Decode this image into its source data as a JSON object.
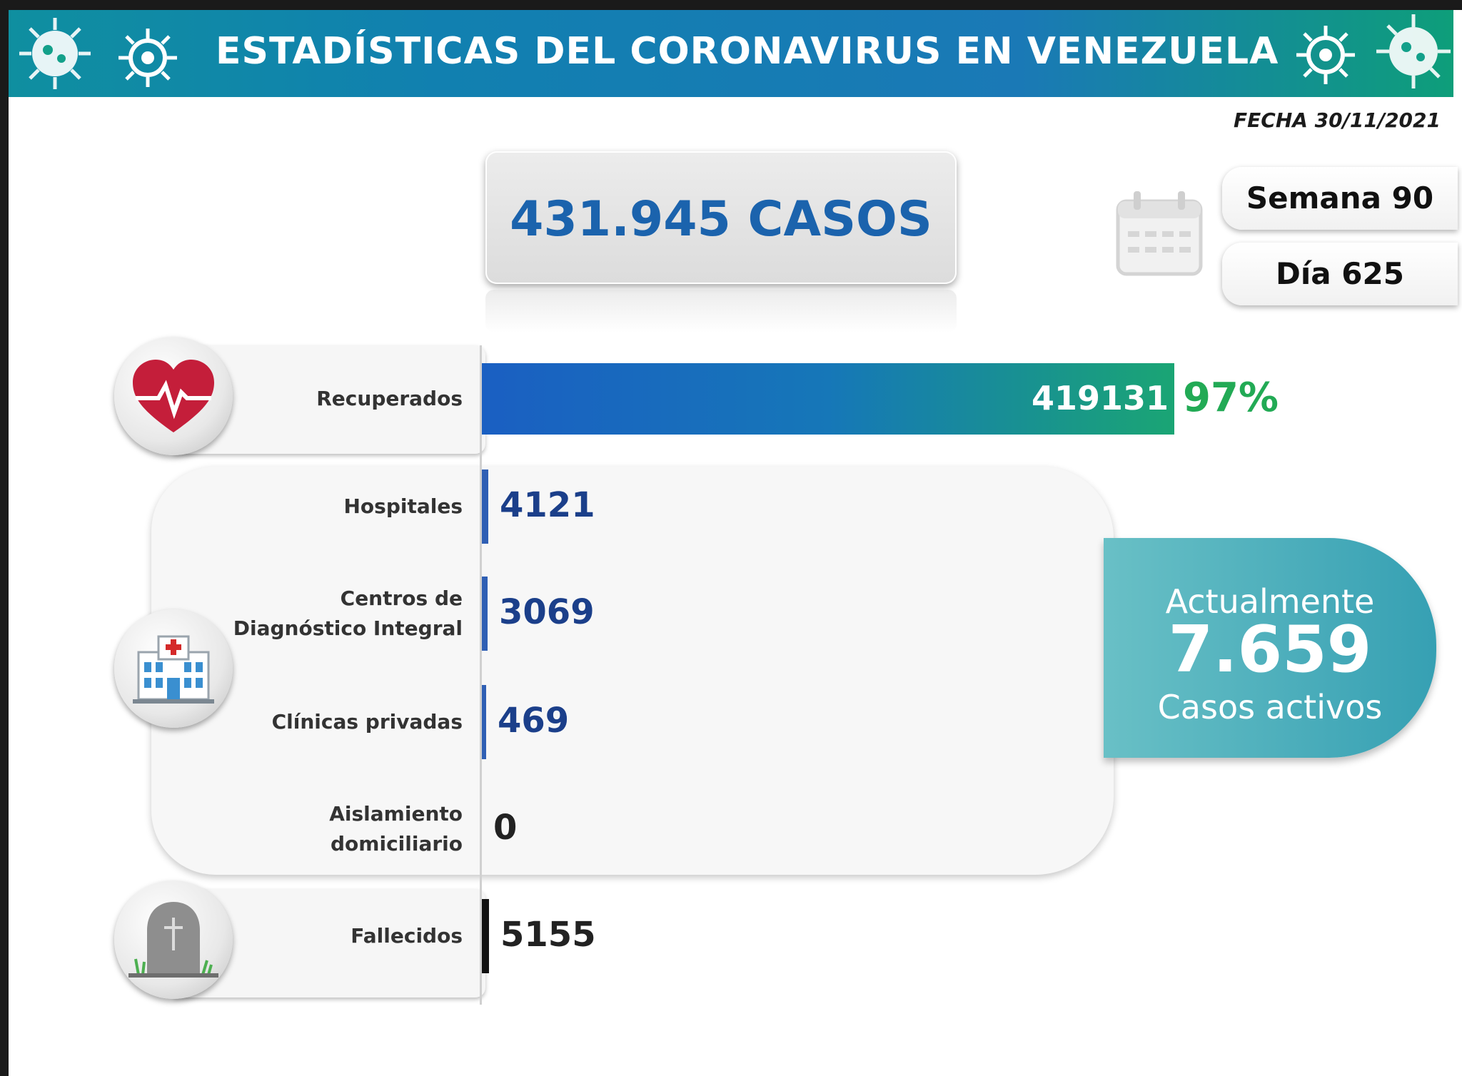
{
  "header": {
    "title": "ESTADÍSTICAS DEL CORONAVIRUS EN VENEZUELA"
  },
  "fecha": "FECHA 30/11/2021",
  "total": "431.945 CASOS",
  "semana": "Semana 90",
  "dia": "Día 625",
  "active": {
    "line1": "Actualmente",
    "value": "7.659",
    "line2": "Casos activos"
  },
  "colors": {
    "blue": "#1b63ad",
    "green": "#22aa55",
    "teal": "#36a0b3"
  },
  "icons": [
    "virus-icon",
    "heart-pulse-icon",
    "hospital-icon",
    "tombstone-icon",
    "calendar-icon"
  ],
  "chart_data": {
    "type": "bar",
    "title": "",
    "xlabel": "",
    "ylabel": "",
    "categories": [
      "Recuperados",
      "Hospitales",
      "Centros de Diagnóstico Integral",
      "Clínicas privadas",
      "Aislamiento domiciliario",
      "Fallecidos"
    ],
    "values": [
      419131,
      4121,
      3069,
      469,
      0,
      5155
    ],
    "value_labels": [
      "419131",
      "4121",
      "3069",
      "469",
      "0",
      "5155"
    ],
    "percent_labels": [
      "97%"
    ],
    "label_lines": [
      [
        "Recuperados"
      ],
      [
        "Hospitales"
      ],
      [
        "Centros de",
        "Diagnóstico Integral"
      ],
      [
        "Clínicas privadas"
      ],
      [
        "Aislamiento",
        "domiciliario"
      ],
      [
        "Fallecidos"
      ]
    ],
    "max_value": 431945
  }
}
